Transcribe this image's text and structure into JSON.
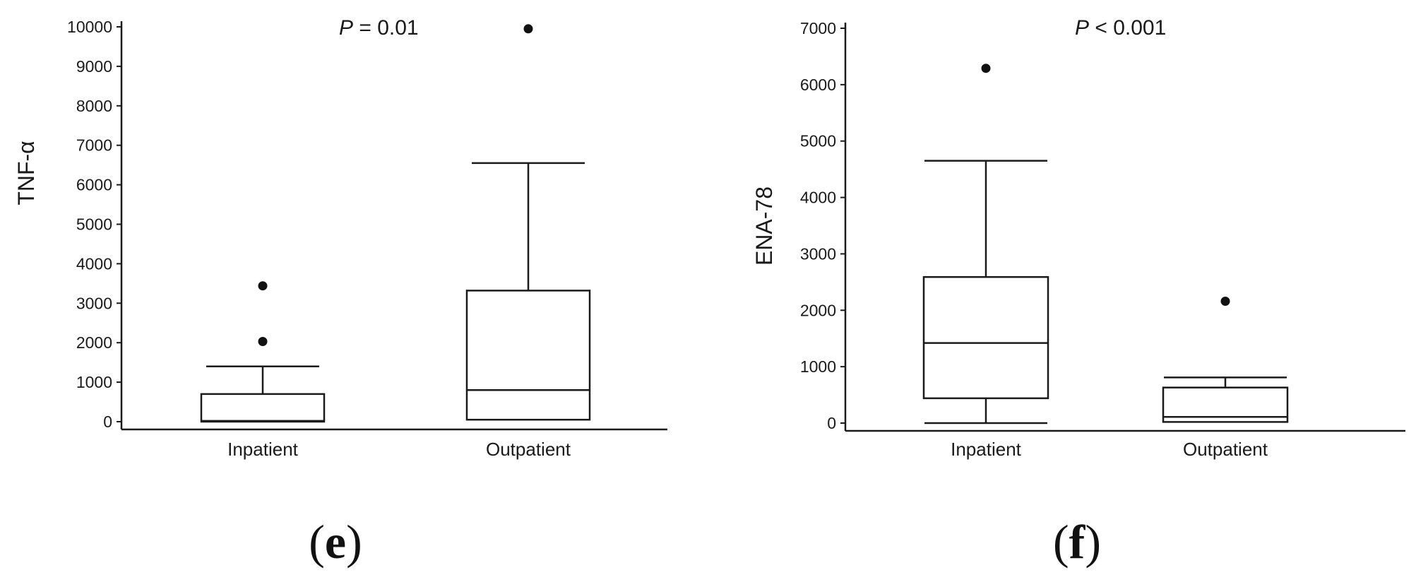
{
  "chart_data": [
    {
      "type": "box",
      "panel_label": {
        "open": "(",
        "letter": "e",
        "close": ")"
      },
      "ylabel": "TNF-α",
      "ylim": [
        0,
        10000
      ],
      "yticks": [
        "0",
        "1000",
        "2000",
        "3000",
        "4000",
        "5000",
        "6000",
        "7000",
        "8000",
        "9000",
        "10000"
      ],
      "annotation": {
        "symbol": "P",
        "text": " = 0.01"
      },
      "categories": [
        "Inpatient",
        "Outpatient"
      ],
      "boxes": [
        {
          "category": "Inpatient",
          "whisker_low": 0,
          "q1": 0,
          "median": 20,
          "q3": 700,
          "whisker_high": 1400,
          "outliers": [
            2030,
            3440
          ]
        },
        {
          "category": "Outpatient",
          "whisker_low": 30,
          "q1": 50,
          "median": 800,
          "q3": 3320,
          "whisker_high": 6550,
          "outliers": [
            9950
          ]
        }
      ]
    },
    {
      "type": "box",
      "panel_label": {
        "open": "(",
        "letter": "f",
        "close": ")"
      },
      "ylabel": "ENA-78",
      "ylim": [
        0,
        7000
      ],
      "yticks": [
        "0",
        "1000",
        "2000",
        "3000",
        "4000",
        "5000",
        "6000",
        "7000"
      ],
      "annotation": {
        "symbol": "P",
        "text": " < 0.001"
      },
      "categories": [
        "Inpatient",
        "Outpatient"
      ],
      "boxes": [
        {
          "category": "Inpatient",
          "whisker_low": 0,
          "q1": 440,
          "median": 1420,
          "q3": 2590,
          "whisker_high": 4650,
          "outliers": [
            6290
          ]
        },
        {
          "category": "Outpatient",
          "whisker_low": 0,
          "q1": 20,
          "median": 110,
          "q3": 630,
          "whisker_high": 810,
          "outliers": [
            2160
          ]
        }
      ]
    }
  ]
}
